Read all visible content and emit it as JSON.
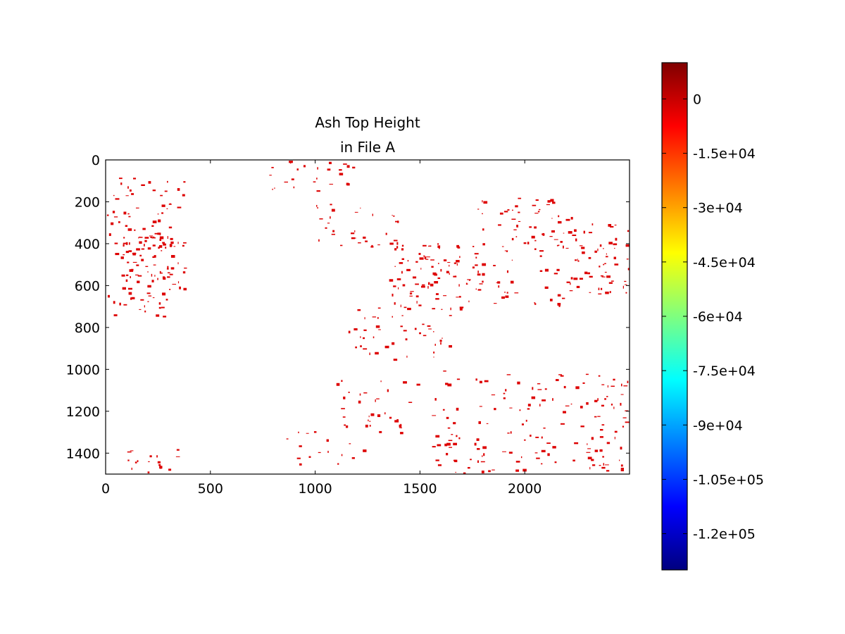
{
  "chart_data": {
    "type": "heatmap",
    "title": "Ash Top Height\nin File A",
    "title_lines": [
      "Ash Top Height",
      "in File A"
    ],
    "xlabel": "",
    "ylabel": "",
    "xlim": [
      0,
      2500
    ],
    "ylim": [
      1500,
      0
    ],
    "y_axis_inverted": true,
    "x_ticks": [
      0,
      500,
      1000,
      1500,
      2000
    ],
    "x_tick_labels": [
      "0",
      "500",
      "1000",
      "1500",
      "2000"
    ],
    "y_ticks": [
      0,
      200,
      400,
      600,
      800,
      1000,
      1200,
      1400
    ],
    "y_tick_labels": [
      "0",
      "200",
      "400",
      "600",
      "800",
      "1000",
      "1200",
      "1400"
    ],
    "grid": false,
    "background_color": "#ffffff",
    "data_color": "#dd0000",
    "colormap": "jet",
    "colorbar": {
      "vmin": -130000,
      "vmax": 10000,
      "ticks": [
        0,
        -15000,
        -30000,
        -45000,
        -60000,
        -75000,
        -90000,
        -105000,
        -120000
      ],
      "tick_labels": [
        "0",
        "-1.5e+04",
        "-3e+04",
        "-4.5e+04",
        "-6e+04",
        "-7.5e+04",
        "-9e+04",
        "-1.05e+05",
        "-1.2e+05"
      ],
      "colors": [
        "#00007f",
        "#0000ff",
        "#007fff",
        "#00ffff",
        "#7fff7f",
        "#ffff00",
        "#ff7f00",
        "#ff0000",
        "#7f0000"
      ]
    },
    "regions": [
      {
        "x": [
          0,
          380
        ],
        "y": [
          80,
          750
        ],
        "value": 0,
        "density": 0.42
      },
      {
        "x": [
          80,
          320
        ],
        "y": [
          360,
          600
        ],
        "value": 0,
        "density": 0.7
      },
      {
        "x": [
          780,
          1200
        ],
        "y": [
          0,
          150
        ],
        "value": 0,
        "density": 0.35
      },
      {
        "x": [
          1000,
          1400
        ],
        "y": [
          200,
          430
        ],
        "value": 0,
        "density": 0.3
      },
      {
        "x": [
          1350,
          1700
        ],
        "y": [
          380,
          720
        ],
        "value": 0,
        "density": 0.6
      },
      {
        "x": [
          1700,
          2250
        ],
        "y": [
          180,
          700
        ],
        "value": 0,
        "density": 0.35
      },
      {
        "x": [
          2230,
          2500
        ],
        "y": [
          300,
          650
        ],
        "value": 0,
        "density": 0.5
      },
      {
        "x": [
          1150,
          1650
        ],
        "y": [
          680,
          950
        ],
        "value": 0,
        "density": 0.3
      },
      {
        "x": [
          1100,
          1500
        ],
        "y": [
          1050,
          1300
        ],
        "value": 0,
        "density": 0.3
      },
      {
        "x": [
          1550,
          2500
        ],
        "y": [
          1000,
          1500
        ],
        "value": 0,
        "density": 0.3
      },
      {
        "x": [
          100,
          350
        ],
        "y": [
          1380,
          1500
        ],
        "value": 0,
        "density": 0.5
      },
      {
        "x": [
          850,
          1250
        ],
        "y": [
          1200,
          1450
        ],
        "value": 0,
        "density": 0.15
      }
    ]
  }
}
